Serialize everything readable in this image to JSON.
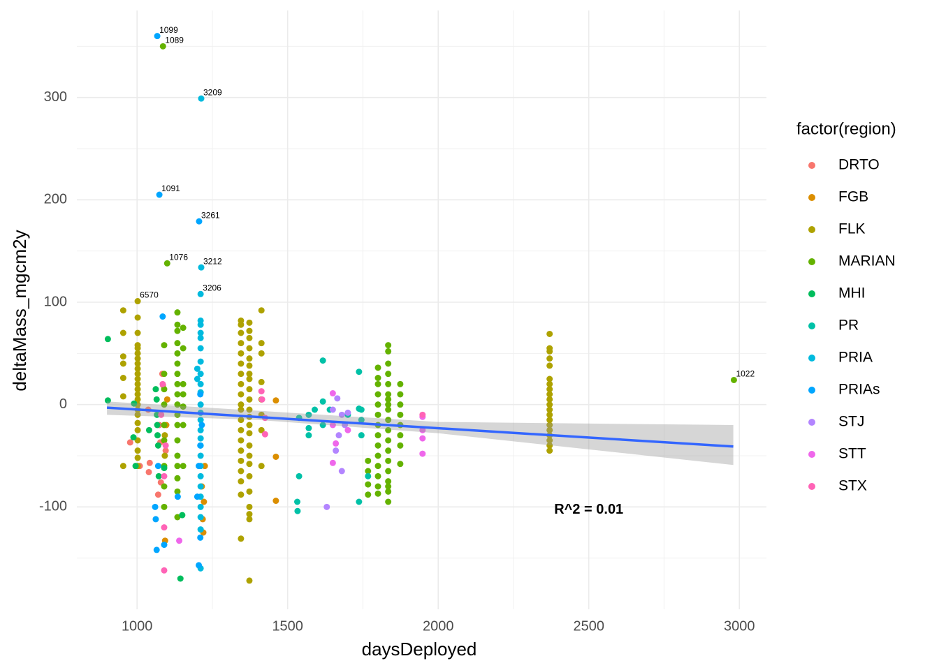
{
  "chart_data": {
    "type": "scatter",
    "x_label": "daysDeployed",
    "y_label": "deltaMass_mgcm2y",
    "legend_title": "factor(region)",
    "xlim": [
      800,
      3090
    ],
    "ylim": [
      -200,
      385
    ],
    "xticks": [
      1000,
      1500,
      2000,
      2500,
      3000
    ],
    "yticks": [
      -100,
      0,
      100,
      200,
      300
    ],
    "grid": true,
    "minor_grid": true,
    "series": [
      {
        "name": "DRTO",
        "color": "#F8766D",
        "x": [
          977,
          1009,
          1037,
          1039,
          1042,
          1070,
          1074,
          1077,
          1079,
          1084,
          1086,
          1095
        ],
        "values": [
          -37,
          -60,
          -5,
          -66,
          -57,
          -88,
          -20,
          -37,
          -76,
          30,
          19,
          -45
        ]
      },
      {
        "name": "FGB",
        "color": "#DB8E00",
        "x": [
          1093,
          1097,
          1100,
          1215,
          1218,
          1220,
          1222,
          1225,
          1461,
          1461,
          1461
        ],
        "values": [
          -133,
          -20,
          5,
          -80,
          -112,
          -125,
          -95,
          -60,
          4,
          -51,
          -94
        ]
      },
      {
        "name": "FLK",
        "color": "#AEA200",
        "x": [
          954,
          954,
          954,
          954,
          954,
          954,
          954,
          1002,
          1002,
          1002,
          1002,
          1002,
          1002,
          1002,
          1002,
          1002,
          1002,
          1002,
          1002,
          1002,
          1002,
          1002,
          1002,
          1002,
          1002,
          1002,
          1002,
          1002,
          1002,
          1002,
          1002,
          1345,
          1345,
          1345,
          1345,
          1345,
          1345,
          1345,
          1345,
          1345,
          1345,
          1345,
          1345,
          1345,
          1345,
          1345,
          1345,
          1345,
          1345,
          1345,
          1345,
          1373,
          1373,
          1373,
          1373,
          1373,
          1373,
          1373,
          1373,
          1373,
          1373,
          1373,
          1373,
          1373,
          1373,
          1373,
          1373,
          1373,
          1373,
          1373,
          1373,
          1373,
          1373,
          1373,
          1413,
          1413,
          1413,
          1413,
          1413,
          1413,
          1413,
          1413,
          2370,
          2370,
          2370,
          2370,
          2370,
          2370,
          2370,
          2370,
          2370,
          2370,
          2370,
          2370,
          2370,
          2370,
          2370,
          2370,
          2370,
          2370,
          2370,
          2370,
          1092,
          1092
        ],
        "values": [
          92,
          70,
          47,
          40,
          26,
          8,
          -60,
          101,
          85,
          70,
          58,
          55,
          50,
          45,
          40,
          35,
          30,
          25,
          20,
          15,
          10,
          5,
          0,
          -5,
          -10,
          -18,
          -25,
          -35,
          -45,
          -52,
          -60,
          82,
          78,
          70,
          60,
          50,
          40,
          30,
          20,
          10,
          0,
          -5,
          -15,
          -25,
          -35,
          -45,
          -55,
          -65,
          -75,
          -88,
          -131,
          80,
          72,
          65,
          55,
          45,
          38,
          30,
          25,
          15,
          5,
          -5,
          -12,
          -20,
          -28,
          -40,
          -50,
          -58,
          -70,
          -85,
          -100,
          -107,
          -112,
          -172,
          92,
          60,
          50,
          22,
          5,
          -10,
          -25,
          -60,
          69,
          55,
          52,
          45,
          38,
          25,
          20,
          15,
          10,
          5,
          0,
          -5,
          -10,
          -15,
          -20,
          -25,
          -30,
          -35,
          -40,
          -45,
          -30,
          -50
        ]
      },
      {
        "name": "MARIAN",
        "color": "#64B200",
        "x": [
          1086,
          1100,
          2982,
          1090,
          1090,
          1090,
          1090,
          1090,
          1090,
          1090,
          1090,
          1090,
          1134,
          1134,
          1134,
          1134,
          1134,
          1134,
          1134,
          1134,
          1134,
          1134,
          1134,
          1134,
          1134,
          1134,
          1134,
          1134,
          1134,
          1134,
          1153,
          1153,
          1153,
          1153,
          1153,
          1153,
          1153,
          1800,
          1800,
          1800,
          1800,
          1800,
          1800,
          1800,
          1800,
          1800,
          1800,
          1800,
          1800,
          1800,
          1800,
          1834,
          1834,
          1834,
          1834,
          1834,
          1834,
          1834,
          1834,
          1834,
          1834,
          1834,
          1834,
          1834,
          1834,
          1834,
          1834,
          1834,
          1834,
          1834,
          1874,
          1874,
          1874,
          1874,
          1874,
          1874,
          1874,
          1874,
          1767,
          1767,
          1767,
          1767
        ],
        "values": [
          350,
          138,
          24,
          58,
          30,
          15,
          0,
          -20,
          -35,
          -60,
          -80,
          -100,
          90,
          78,
          72,
          60,
          50,
          40,
          30,
          20,
          10,
          0,
          -10,
          -20,
          -35,
          -50,
          -60,
          -72,
          -85,
          -110,
          75,
          55,
          20,
          10,
          -2,
          -20,
          -60,
          36,
          26,
          20,
          10,
          0,
          -10,
          -20,
          -30,
          -40,
          -50,
          -60,
          -70,
          -80,
          -87,
          58,
          52,
          40,
          30,
          20,
          10,
          5,
          0,
          -5,
          -15,
          -25,
          -35,
          -45,
          -55,
          -65,
          -75,
          -80,
          -85,
          -95,
          20,
          10,
          0,
          -10,
          -20,
          -30,
          -40,
          -58,
          -55,
          -65,
          -78,
          -88
        ]
      },
      {
        "name": "MHI",
        "color": "#00BD5C",
        "x": [
          903,
          903,
          988,
          990,
          995,
          1040,
          1062,
          1065,
          1066,
          1067,
          1068,
          1070,
          1072,
          1090,
          1144,
          1150
        ],
        "values": [
          64,
          4,
          -32,
          1,
          -60,
          -25,
          15,
          5,
          -10,
          -20,
          -30,
          -40,
          -70,
          -62,
          -170,
          -108
        ]
      },
      {
        "name": "PR",
        "color": "#00C1A7",
        "x": [
          1538,
          1538,
          1532,
          1533,
          1570,
          1570,
          1570,
          1617,
          1617,
          1617,
          1640,
          1700,
          1737,
          1737,
          1737,
          1745,
          1745,
          1745,
          1767,
          1590
        ],
        "values": [
          -13,
          -70,
          -95,
          -104,
          -10,
          -23,
          -30,
          43,
          -20,
          3,
          -5,
          -10,
          32,
          -4,
          -95,
          -15,
          -30,
          -5,
          -70,
          -5
        ]
      },
      {
        "name": "PRIA",
        "color": "#00BADE",
        "x": [
          1213,
          1213,
          1211,
          1211,
          1211,
          1211,
          1211,
          1211,
          1211,
          1211,
          1211,
          1211,
          1211,
          1211,
          1211,
          1211,
          1211,
          1211,
          1211,
          1211,
          1211,
          1211,
          1211,
          1211,
          1211,
          1211,
          1211,
          1200,
          1200
        ],
        "values": [
          299,
          134,
          108,
          82,
          78,
          70,
          65,
          55,
          42,
          30,
          20,
          12,
          0,
          -8,
          -15,
          -25,
          -33,
          -40,
          -50,
          -60,
          -70,
          -80,
          -90,
          -100,
          -110,
          -122,
          -160,
          35,
          25
        ]
      },
      {
        "name": "PRIAs",
        "color": "#00A6FF",
        "x": [
          1067,
          1074,
          1206,
          1085,
          1060,
          1062,
          1065,
          1090,
          1205,
          1210,
          1200,
          1205,
          1210,
          1215,
          1210,
          1070,
          1135
        ],
        "values": [
          360,
          205,
          179,
          86,
          -100,
          -112,
          -142,
          -137,
          -157,
          -130,
          -90,
          -60,
          -40,
          -20,
          10,
          -60,
          -90
        ]
      },
      {
        "name": "STJ",
        "color": "#B385FF",
        "x": [
          1665,
          1680,
          1650,
          1670,
          1690,
          1680,
          1630,
          1660,
          1700
        ],
        "values": [
          6,
          -10,
          -5,
          -30,
          -20,
          -65,
          -100,
          -45,
          -8
        ]
      },
      {
        "name": "STT",
        "color": "#EF67EB",
        "x": [
          1650,
          1660,
          1650,
          1948,
          1948,
          1948,
          1948,
          1140,
          1650,
          1700
        ],
        "values": [
          11,
          -38,
          -57,
          -12,
          -25,
          -33,
          -48,
          -133,
          -20,
          -25
        ]
      },
      {
        "name": "STX",
        "color": "#FF63B6",
        "x": [
          1415,
          1413,
          1425,
          1425,
          1090,
          1085,
          1090,
          1095,
          1080,
          1948,
          1090
        ],
        "values": [
          5,
          13,
          -13,
          -29,
          -162,
          20,
          -70,
          -40,
          -10,
          -10,
          -120
        ]
      }
    ],
    "trend": {
      "color": "#3366FF",
      "x": [
        900,
        2980
      ],
      "y": [
        -3,
        -41
      ]
    },
    "ribbon": {
      "color": "#999999",
      "x": [
        900,
        1400,
        2000,
        2980
      ],
      "lower": [
        -10,
        -15,
        -28,
        -59
      ],
      "upper": [
        3,
        -6,
        -17,
        -20
      ]
    },
    "point_labels": [
      {
        "text": "1099",
        "x": 1067,
        "y": 360
      },
      {
        "text": "1089",
        "x": 1086,
        "y": 350
      },
      {
        "text": "3209",
        "x": 1213,
        "y": 299
      },
      {
        "text": "1091",
        "x": 1074,
        "y": 205
      },
      {
        "text": "3261",
        "x": 1206,
        "y": 179
      },
      {
        "text": "1076",
        "x": 1100,
        "y": 138
      },
      {
        "text": "3212",
        "x": 1213,
        "y": 134
      },
      {
        "text": "3206",
        "x": 1211,
        "y": 108
      },
      {
        "text": "6570",
        "x": 1002,
        "y": 101
      },
      {
        "text": "1022",
        "x": 2982,
        "y": 24
      }
    ],
    "annotations": [
      {
        "text": "R^2 = 0.01",
        "x": 2500,
        "y": -103
      }
    ]
  }
}
